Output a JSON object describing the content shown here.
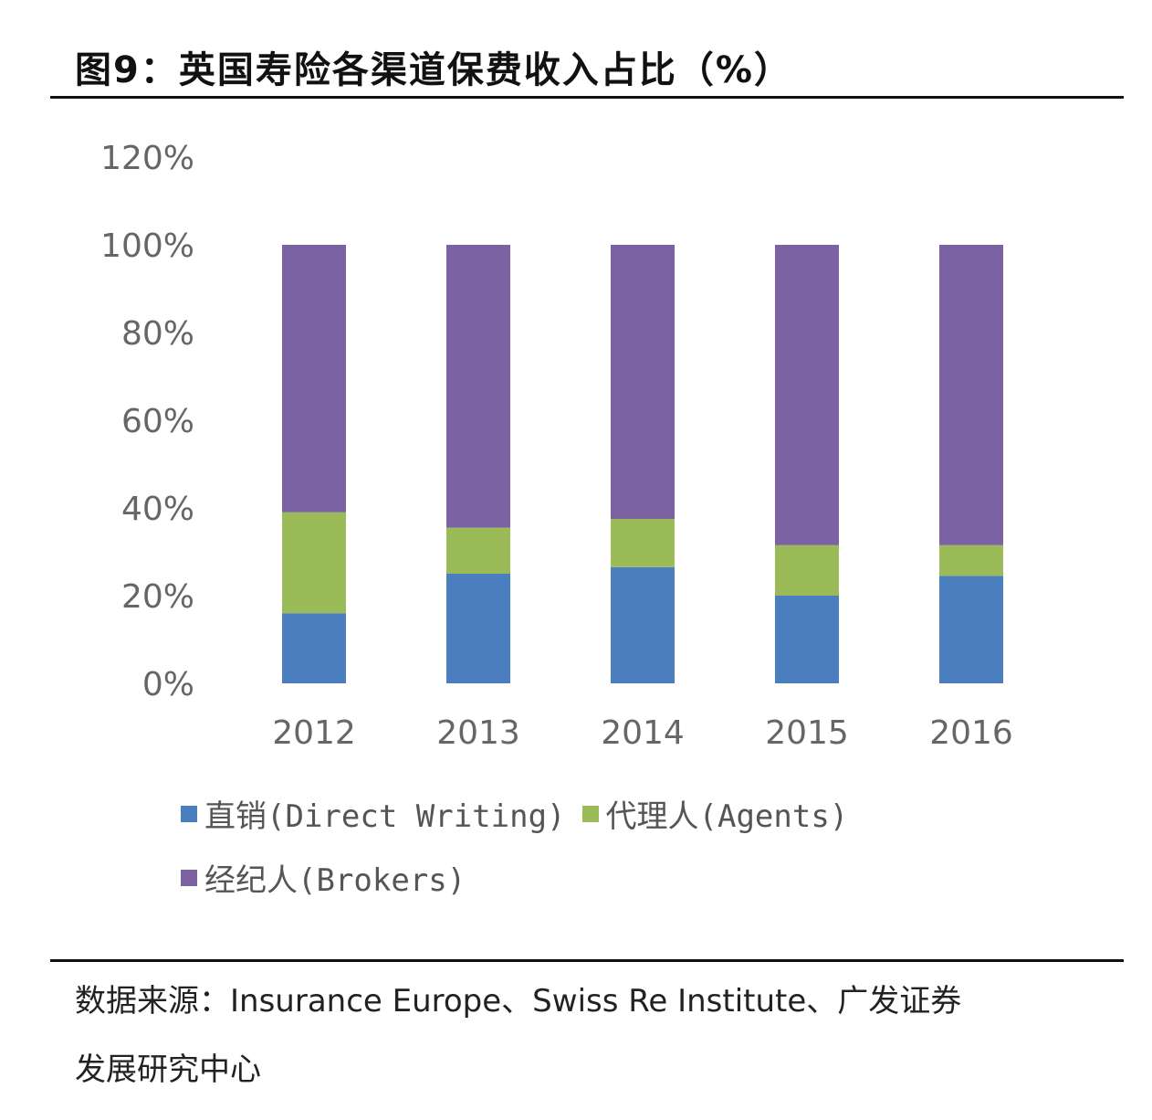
{
  "title": "图9：英国寿险各渠道保费收入占比（%）",
  "source_line1": "数据来源：Insurance Europe、Swiss Re Institute、广发证券",
  "source_line2": "发展研究中心",
  "chart_data": {
    "type": "bar",
    "stacked": true,
    "categories": [
      "2012",
      "2013",
      "2014",
      "2015",
      "2016"
    ],
    "series": [
      {
        "name": "直销(Direct Writing)",
        "color": "#4a7ebf",
        "values": [
          16,
          25,
          26.5,
          20,
          24.5
        ]
      },
      {
        "name": "代理人(Agents)",
        "color": "#9bbb59",
        "values": [
          23,
          10.5,
          11,
          11.5,
          7
        ]
      },
      {
        "name": "经纪人(Brokers)",
        "color": "#7b62a3",
        "values": [
          61,
          64.5,
          62.5,
          68.5,
          68.5
        ]
      }
    ],
    "ylim": [
      0,
      120
    ],
    "yticks": [
      "0%",
      "20%",
      "40%",
      "60%",
      "80%",
      "100%",
      "120%"
    ],
    "grid": false,
    "legend_position": "bottom"
  }
}
